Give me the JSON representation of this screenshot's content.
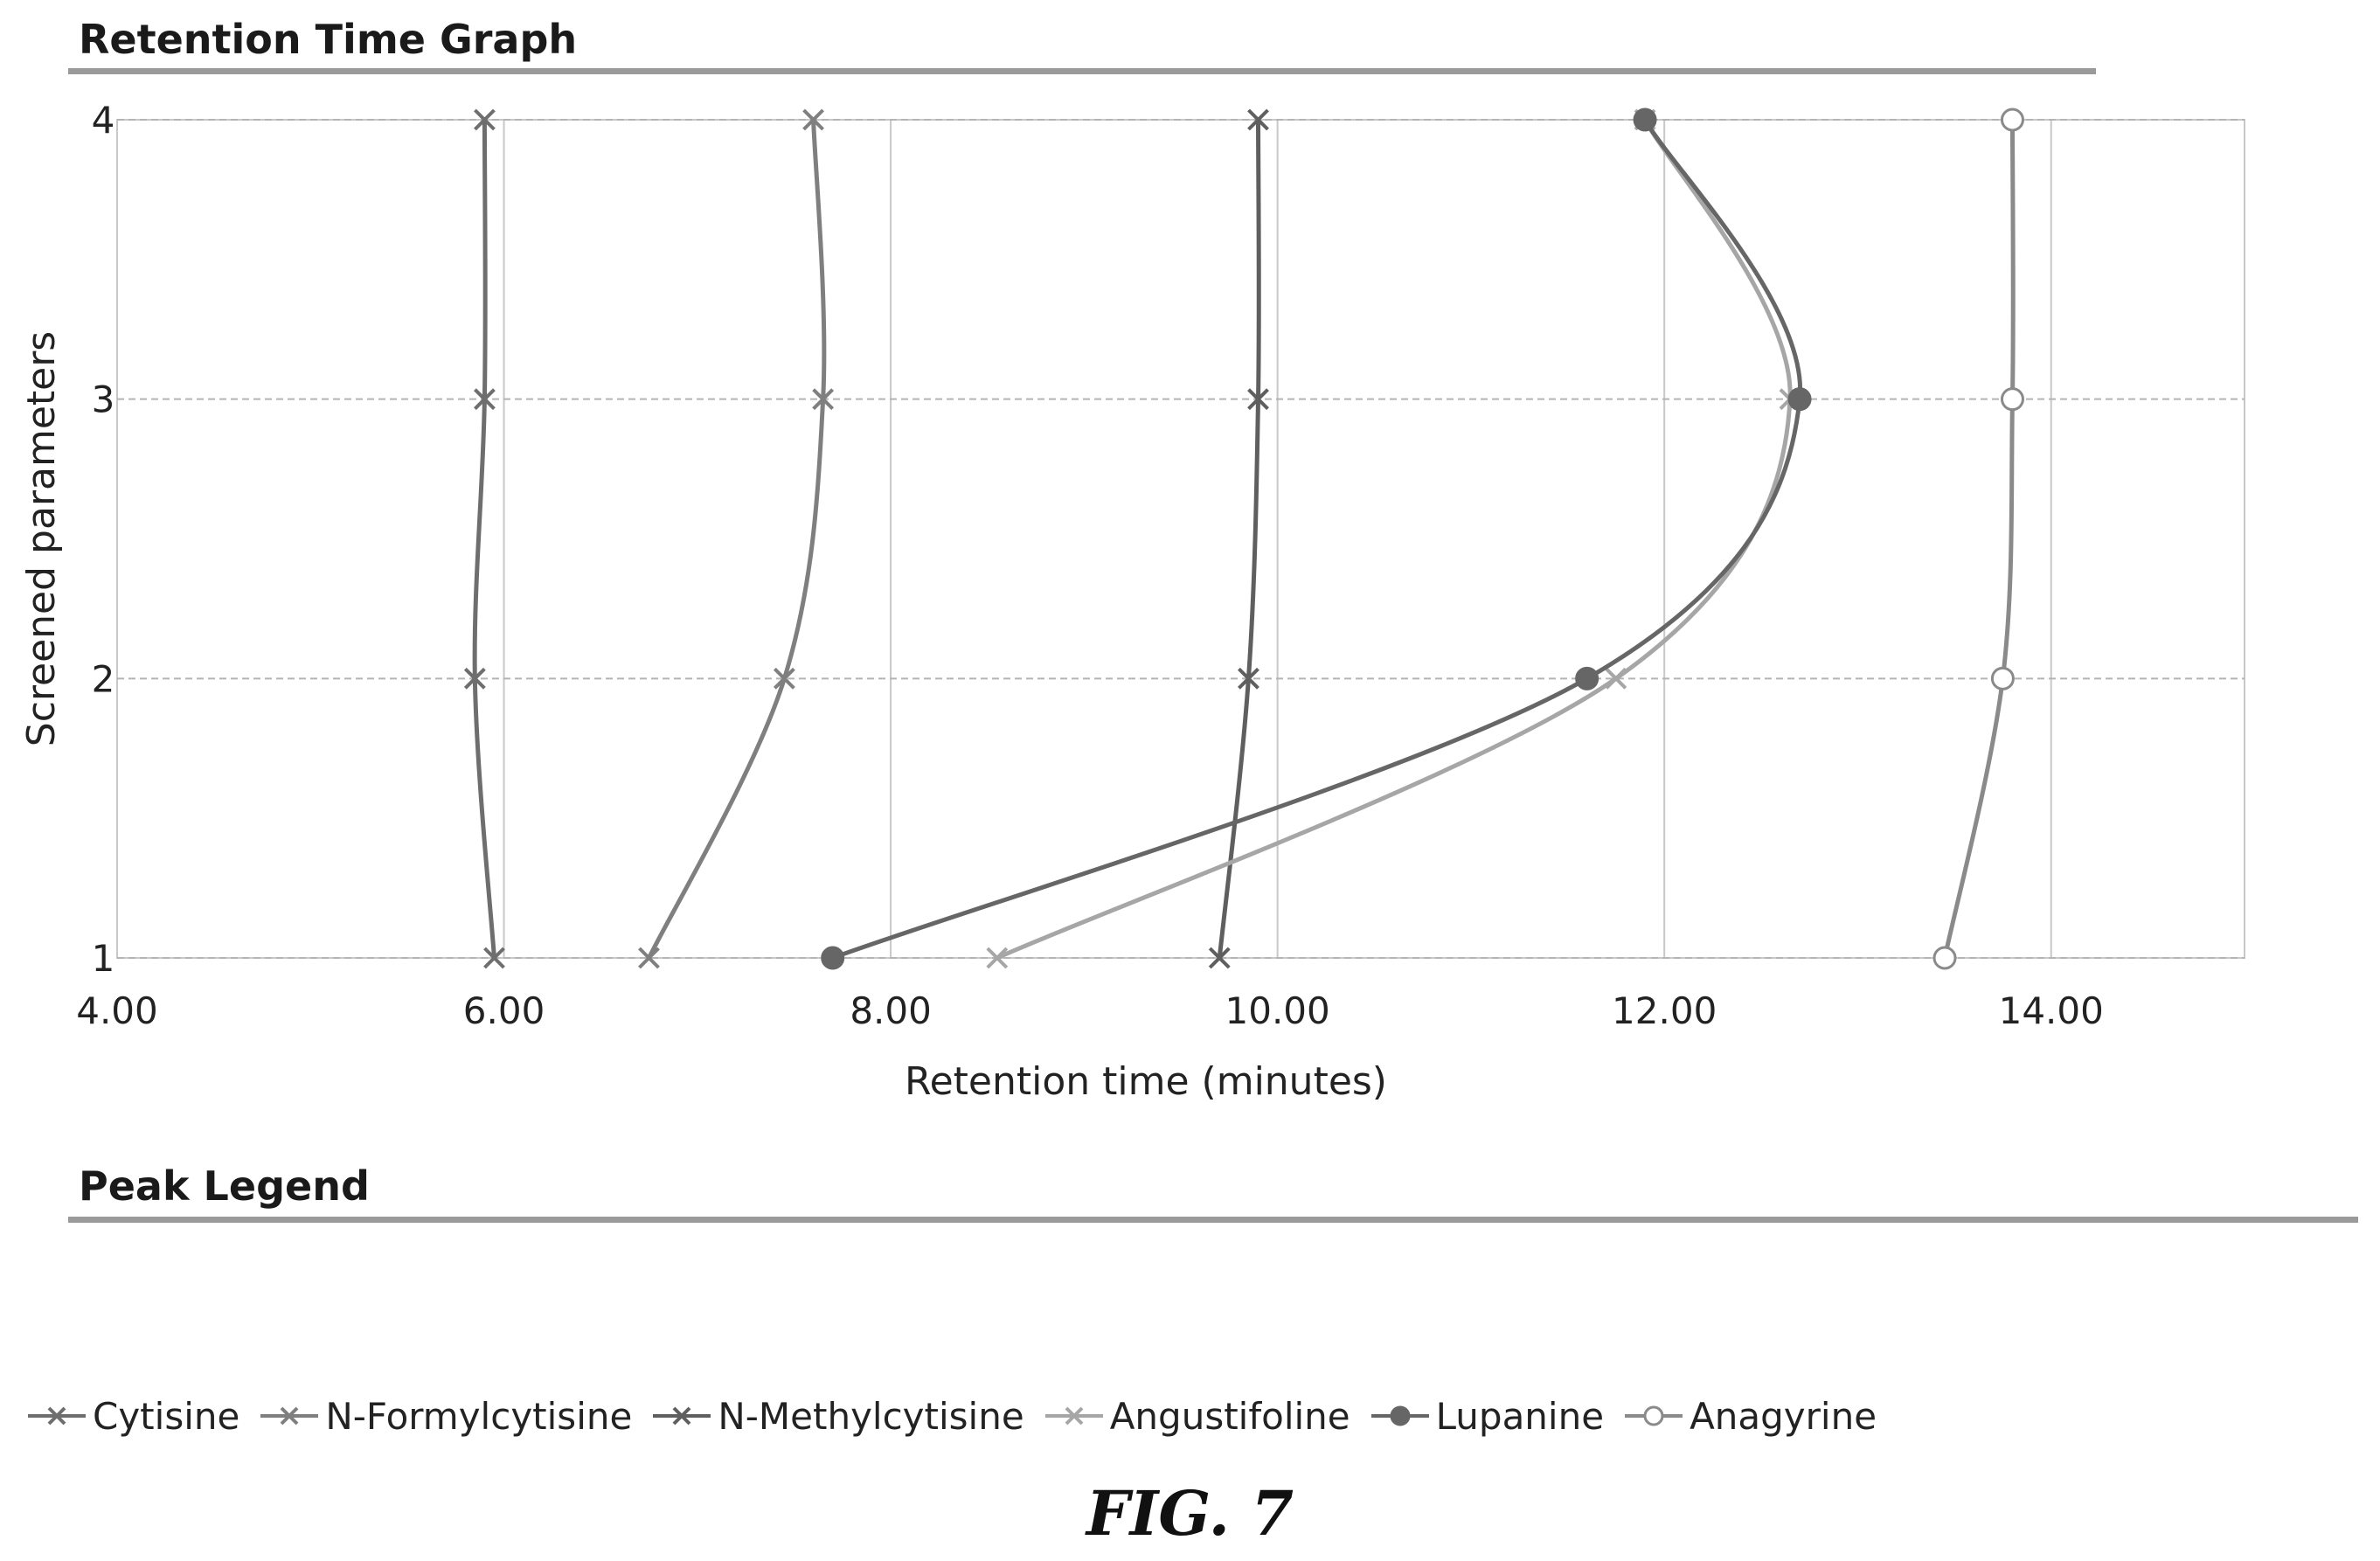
{
  "headings": {
    "graph": "Retention Time Graph",
    "legend": "Peak Legend"
  },
  "figure_label": "FIG. 7",
  "chart_data": {
    "type": "line",
    "title": "Retention Time Graph",
    "xlabel": "Retention time (minutes)",
    "ylabel": "Screened parameters",
    "xlim": [
      4.0,
      15.0
    ],
    "ylim": [
      1,
      4
    ],
    "xticks": [
      "4.00",
      "6.00",
      "8.00",
      "10.00",
      "12.00",
      "14.00"
    ],
    "yticks": [
      "1",
      "2",
      "3",
      "4"
    ],
    "grid": true,
    "legend_position": "bottom",
    "series": [
      {
        "name": "Cytisine",
        "marker": "x",
        "color": "#6e6e6e",
        "points": [
          [
            5.95,
            1
          ],
          [
            5.85,
            2
          ],
          [
            5.9,
            3
          ],
          [
            5.9,
            4
          ]
        ]
      },
      {
        "name": "N-Formylcytisine",
        "marker": "x",
        "color": "#7f7f7f",
        "points": [
          [
            6.75,
            1
          ],
          [
            7.45,
            2
          ],
          [
            7.65,
            3
          ],
          [
            7.6,
            4
          ]
        ]
      },
      {
        "name": "N-Methylcytisine",
        "marker": "x",
        "color": "#5f5f5f",
        "points": [
          [
            9.7,
            1
          ],
          [
            9.85,
            2
          ],
          [
            9.9,
            3
          ],
          [
            9.9,
            4
          ]
        ]
      },
      {
        "name": "Angustifoline",
        "marker": "x",
        "color": "#a6a6a6",
        "points": [
          [
            8.55,
            1
          ],
          [
            11.75,
            2
          ],
          [
            12.65,
            3
          ],
          [
            11.9,
            4
          ]
        ]
      },
      {
        "name": "Lupanine",
        "marker": "filled-circle",
        "color": "#666666",
        "points": [
          [
            7.7,
            1
          ],
          [
            11.6,
            2
          ],
          [
            12.7,
            3
          ],
          [
            11.9,
            4
          ]
        ]
      },
      {
        "name": "Anagyrine",
        "marker": "open-circle",
        "color": "#8a8a8a",
        "points": [
          [
            13.45,
            1
          ],
          [
            13.75,
            2
          ],
          [
            13.8,
            3
          ],
          [
            13.8,
            4
          ]
        ]
      }
    ]
  }
}
